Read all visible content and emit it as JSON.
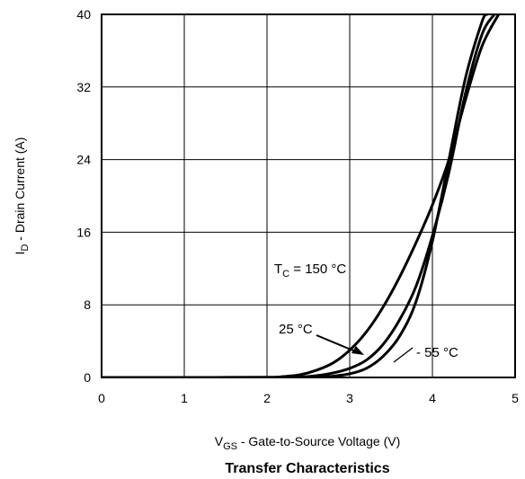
{
  "chart_data": {
    "type": "line",
    "title": "Transfer Characteristics",
    "xlabel": {
      "main": "V",
      "sub": "GS",
      "rest": " - Gate-to-Source Voltage (V)"
    },
    "ylabel": {
      "main": "I",
      "sub": "D",
      "rest": " - Drain Current  (A)"
    },
    "xlim": [
      0,
      5
    ],
    "ylim": [
      0,
      40
    ],
    "xticks": [
      0,
      1,
      2,
      3,
      4,
      5
    ],
    "yticks": [
      0,
      8,
      16,
      24,
      32,
      40
    ],
    "grid": true,
    "series": [
      {
        "id": "t150",
        "x": [
          0,
          1.0,
          2.0,
          2.2,
          2.4,
          2.6,
          2.8,
          3.0,
          3.2,
          3.4,
          3.6,
          3.8,
          4.0,
          4.2,
          4.4,
          4.6,
          4.8
        ],
        "y": [
          0,
          0,
          0.02,
          0.1,
          0.3,
          0.8,
          1.6,
          3.0,
          5.0,
          7.7,
          11.0,
          14.8,
          19.0,
          24.0,
          30.6,
          36.5,
          40.0
        ]
      },
      {
        "id": "t25",
        "x": [
          0,
          1.0,
          2.0,
          2.4,
          2.6,
          2.8,
          3.0,
          3.2,
          3.4,
          3.6,
          3.8,
          4.0,
          4.2,
          4.4,
          4.6,
          4.75
        ],
        "y": [
          0,
          0,
          0,
          0.05,
          0.2,
          0.5,
          1.0,
          1.9,
          3.6,
          6.3,
          10.0,
          15.6,
          22.6,
          31.3,
          37.8,
          40.0
        ]
      },
      {
        "id": "tm55",
        "x": [
          0,
          1.0,
          2.0,
          2.6,
          2.8,
          3.0,
          3.2,
          3.4,
          3.6,
          3.8,
          4.0,
          4.2,
          4.4,
          4.6,
          4.66
        ],
        "y": [
          0,
          0,
          0,
          0.02,
          0.15,
          0.4,
          1.0,
          2.3,
          4.5,
          8.3,
          15.0,
          24.0,
          33.0,
          39.2,
          40.0
        ]
      }
    ],
    "annotations": [
      {
        "target": "t150",
        "main": "T",
        "sub": "C",
        "rest": " = 150 °C"
      },
      {
        "target": "t25",
        "text": "25 °C",
        "arrow": true
      },
      {
        "target": "tm55",
        "text": "- 55 °C",
        "leader": true
      }
    ]
  }
}
